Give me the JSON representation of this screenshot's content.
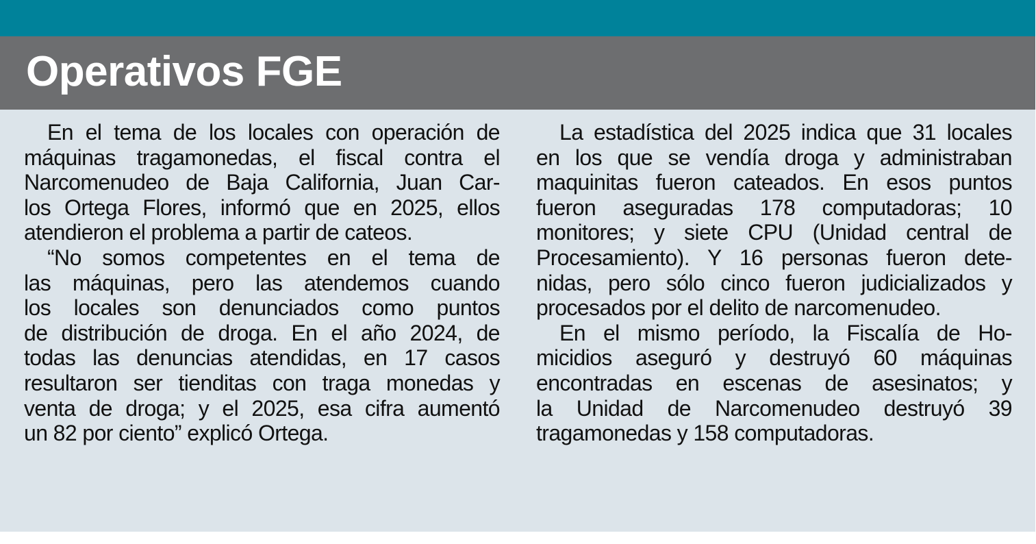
{
  "header": {
    "title": "Operativos FGE"
  },
  "colors": {
    "top_bar": "#00829A",
    "header_bg": "#6D6E70",
    "body_bg": "#DCE4EA"
  },
  "columns": [
    {
      "paragraphs": [
        {
          "lines": [
            "En el tema de los locales con operación de",
            "máquinas tragamonedas, el fiscal contra el",
            "Narcomenudeo de Baja California, Juan Car-",
            "los Ortega Flores, informó que en 2025, ellos",
            "atendieron el problema a partir de cateos."
          ]
        },
        {
          "lines": [
            "“No somos competentes en el tema de",
            "las máquinas, pero las atendemos cuando",
            "los locales son denunciados como puntos",
            "de distribución de droga. En el año 2024, de",
            "todas las denuncias atendidas, en 17 casos",
            "resultaron ser tienditas con traga monedas y",
            "venta de droga; y el 2025, esa cifra aumentó",
            "un 82 por ciento” explicó Ortega."
          ]
        }
      ]
    },
    {
      "paragraphs": [
        {
          "lines": [
            "La estadística del 2025 indica que 31 locales",
            "en los que se vendía droga y administraban",
            "maquinitas fueron cateados. En esos puntos",
            "fueron aseguradas 178 computadoras; 10",
            "monitores; y siete CPU (Unidad central de",
            "Procesamiento). Y 16 personas fueron dete-",
            "nidas, pero sólo cinco fueron judicializados y",
            "procesados por el delito de narcomenudeo."
          ]
        },
        {
          "lines": [
            "En el mismo período, la Fiscalía de Ho-",
            "micidios aseguró y destruyó 60 máquinas",
            "encontradas en escenas de asesinatos; y",
            "la Unidad de Narcomenudeo destruyó 39",
            "tragamonedas y 158 computadoras."
          ]
        }
      ]
    }
  ]
}
